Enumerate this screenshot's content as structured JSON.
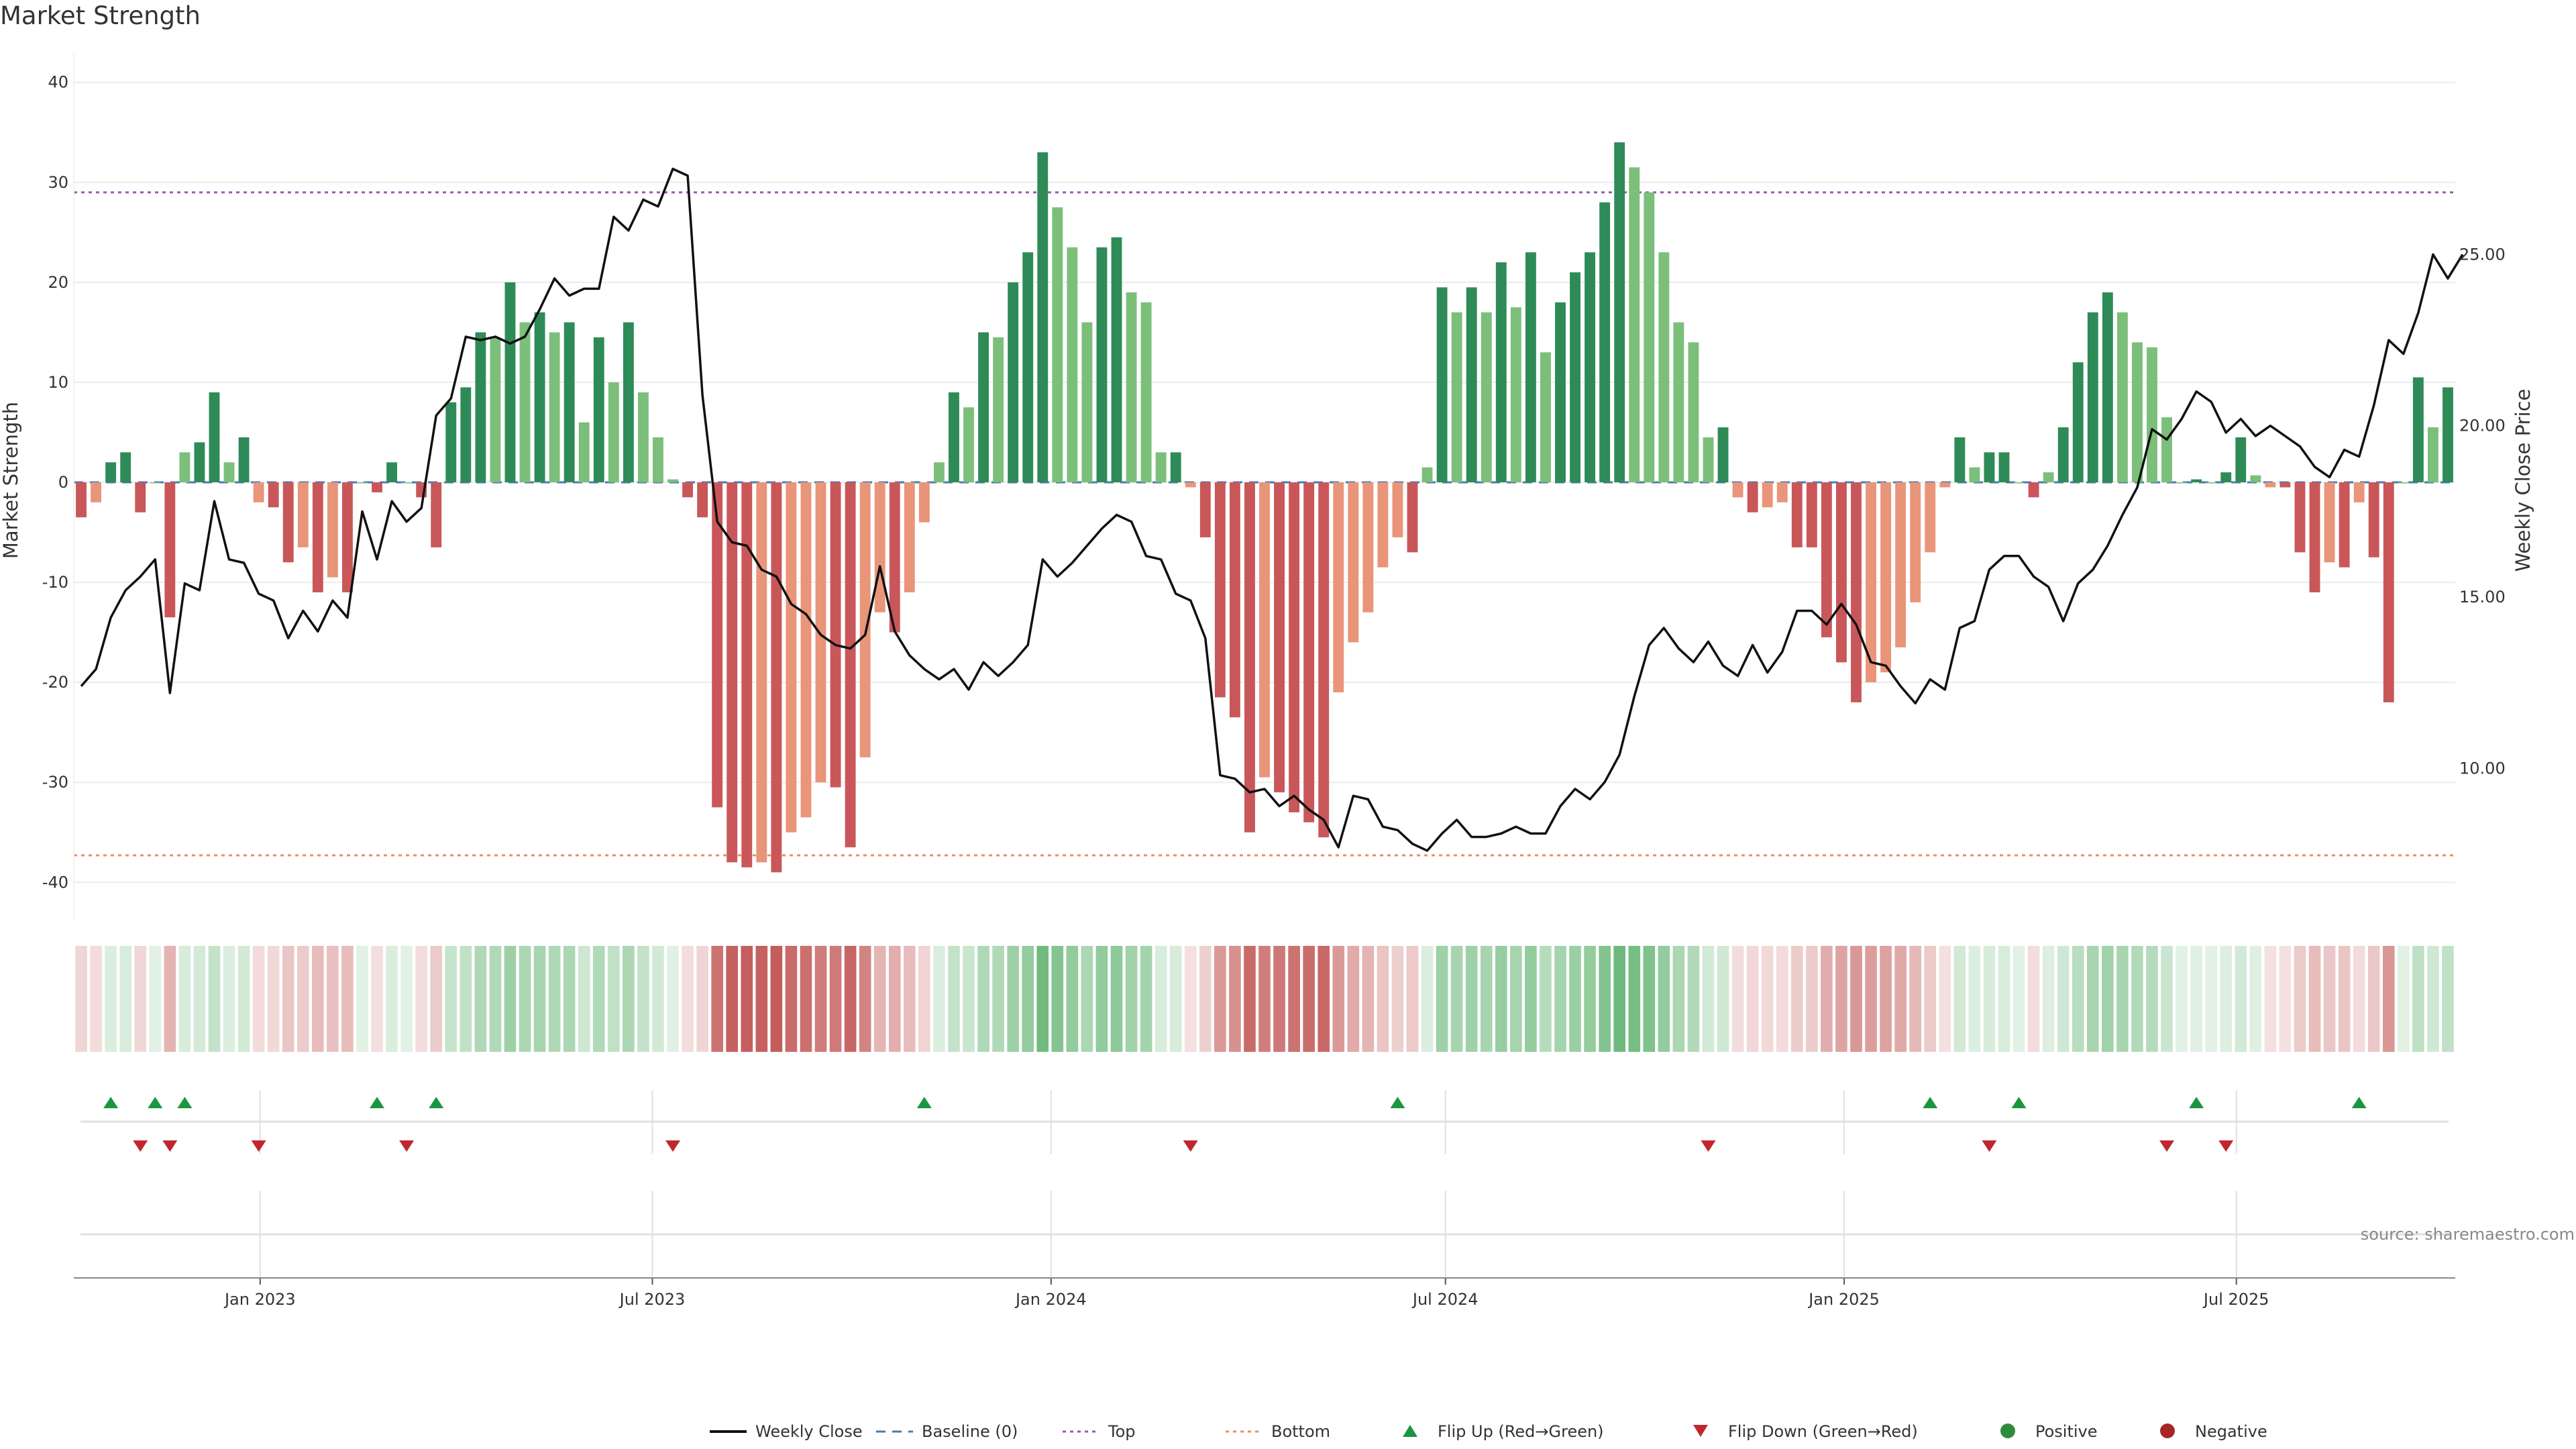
{
  "chart_data": {
    "type": "bar",
    "title": "Market Strength",
    "ylabel": "Market Strength",
    "y2label": "Weekly Close Price",
    "ylim": [
      -43,
      43
    ],
    "y2lim": [
      5.8,
      30.9
    ],
    "yticks": [
      -40,
      -30,
      -20,
      -10,
      0,
      10,
      20,
      30,
      40
    ],
    "y2ticks": [
      "10.00",
      "15.00",
      "20.00",
      "25.00"
    ],
    "y2tickvalues": [
      10,
      15,
      20,
      25
    ],
    "x_start": "2022-10-07",
    "x_end": "2025-10-10",
    "xticks": [
      {
        "date": "2023-01-01",
        "label": "Jan 2023"
      },
      {
        "date": "2023-07-01",
        "label": "Jul 2023"
      },
      {
        "date": "2024-01-01",
        "label": "Jan 2024"
      },
      {
        "date": "2024-07-01",
        "label": "Jul 2024"
      },
      {
        "date": "2025-01-01",
        "label": "Jan 2025"
      },
      {
        "date": "2025-07-01",
        "label": "Jul 2025"
      }
    ],
    "top_line": 29,
    "bottom_line": -37.3,
    "strength": [
      -3.5,
      -2,
      2,
      3,
      -3,
      0,
      -13.5,
      3,
      4,
      9,
      2,
      4.5,
      -2,
      -2.5,
      -8,
      -6.5,
      -11,
      -9.5,
      -11,
      0,
      -1,
      2,
      0,
      -1.5,
      -6.5,
      8,
      9.5,
      15,
      14.5,
      20,
      16,
      17,
      15,
      16,
      6,
      14.5,
      10,
      16,
      9,
      4.5,
      0.3,
      -1.5,
      -3.5,
      -32.5,
      -38,
      -38.5,
      -38,
      -39,
      -35,
      -33.5,
      -30,
      -30.5,
      -36.5,
      -27.5,
      -13,
      -15,
      -11,
      -4,
      2,
      9,
      7.5,
      15,
      14.5,
      20,
      23,
      33,
      27.5,
      23.5,
      16,
      23.5,
      24.5,
      19,
      18,
      3,
      3,
      -0.5,
      -5.5,
      -21.5,
      -23.5,
      -35,
      -29.5,
      -31,
      -33,
      -34,
      -35.5,
      -21,
      -16,
      -13,
      -8.5,
      -5.5,
      -7,
      1.5,
      19.5,
      17,
      19.5,
      17,
      22,
      17.5,
      23,
      13,
      18,
      21,
      23,
      28,
      34,
      31.5,
      29,
      23,
      16,
      14,
      4.5,
      5.5,
      -1.5,
      -3,
      -2.5,
      -2,
      -6.5,
      -6.5,
      -15.5,
      -18,
      -22,
      -20,
      -19,
      -16.5,
      -12,
      -7,
      -0.5,
      4.5,
      1.5,
      3,
      3,
      0,
      -1.5,
      1,
      5.5,
      12,
      17,
      19,
      17,
      14,
      13.5,
      6.5,
      0,
      0.3,
      0,
      1,
      4.5,
      0.7,
      -0.5,
      -0.5,
      -7,
      -11,
      -8,
      -8.5,
      -2,
      -7.5,
      -22,
      0,
      10.5,
      5.5,
      9.5
    ],
    "weekly_close": [
      12.4,
      12.9,
      14.4,
      15.2,
      15.6,
      16.1,
      12.2,
      15.4,
      15.2,
      17.8,
      16.1,
      16,
      15.1,
      14.9,
      13.8,
      14.6,
      14,
      14.9,
      14.4,
      17.5,
      16.1,
      17.8,
      17.2,
      17.6,
      20.3,
      20.8,
      22.6,
      22.5,
      22.6,
      22.4,
      22.6,
      23.4,
      24.3,
      23.8,
      24,
      24,
      26.1,
      25.7,
      26.6,
      26.4,
      27.5,
      27.3,
      20.9,
      17.2,
      16.6,
      16.5,
      15.8,
      15.6,
      14.8,
      14.5,
      13.9,
      13.6,
      13.5,
      13.9,
      15.9,
      14,
      13.3,
      12.9,
      12.6,
      12.9,
      12.3,
      13.1,
      12.7,
      13.1,
      13.6,
      16.1,
      15.6,
      16,
      16.5,
      17,
      17.4,
      17.2,
      16.2,
      16.1,
      15.1,
      14.9,
      13.8,
      9.8,
      9.7,
      9.3,
      9.4,
      8.9,
      9.2,
      8.8,
      8.5,
      7.7,
      9.2,
      9.1,
      8.3,
      8.2,
      7.8,
      7.6,
      8.1,
      8.5,
      8,
      8,
      8.1,
      8.3,
      8.1,
      8.1,
      8.9,
      9.4,
      9.1,
      9.6,
      10.4,
      12.1,
      13.6,
      14.1,
      13.5,
      13.1,
      13.7,
      13,
      12.7,
      13.6,
      12.8,
      13.4,
      14.6,
      14.6,
      14.2,
      14.8,
      14.2,
      13.1,
      13,
      12.4,
      11.9,
      12.6,
      12.3,
      14.1,
      14.3,
      15.8,
      16.2,
      16.2,
      15.6,
      15.3,
      14.3,
      15.4,
      15.8,
      16.5,
      17.4,
      18.2,
      19.9,
      19.6,
      20.2,
      21,
      20.7,
      19.8,
      20.2,
      19.7,
      20,
      19.7,
      19.4,
      18.8,
      18.5,
      19.3,
      19.1,
      20.6,
      22.5,
      22.1,
      23.3,
      25,
      24.3,
      25
    ],
    "flip_up_weeks": [
      2,
      5,
      7,
      20,
      24,
      57,
      89,
      125,
      131,
      143,
      154
    ],
    "flip_down_weeks": [
      4,
      6,
      12,
      22,
      40,
      75,
      110,
      129,
      141,
      145
    ]
  },
  "source": "source: sharemaestro.com",
  "legend": [
    {
      "label": "Weekly Close",
      "kind": "line",
      "color": "#111111"
    },
    {
      "label": "Baseline (0)",
      "kind": "dash",
      "color": "#4a7bb0"
    },
    {
      "label": "Top",
      "kind": "dot",
      "color": "#9b59b6"
    },
    {
      "label": "Bottom",
      "kind": "dot",
      "color": "#e8905a"
    },
    {
      "label": "Flip Up (Red→Green)",
      "kind": "triangle-up",
      "color": "#1a9641"
    },
    {
      "label": "Flip Down (Green→Red)",
      "kind": "triangle-down",
      "color": "#c0272d"
    },
    {
      "label": "Positive",
      "kind": "circle",
      "color": "#2e8b3a"
    },
    {
      "label": "Negative",
      "kind": "circle",
      "color": "#a8262a"
    }
  ],
  "colors": {
    "pos_strong": "#2e8b57",
    "pos_light": "#7cbf7a",
    "neg_strong": "#c9575a",
    "neg_light": "#e8957a",
    "price_line": "#111111",
    "top_line": "#9b59b6",
    "bottom_line": "#e8905a",
    "baseline": "#4a7bb0",
    "grid": "#ececec"
  }
}
